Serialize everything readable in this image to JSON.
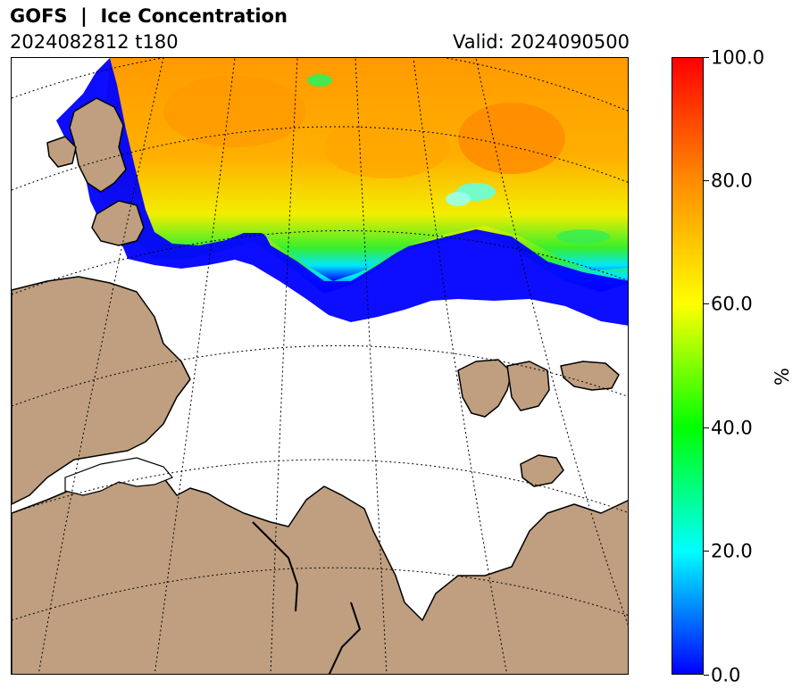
{
  "header": {
    "title": "GOFS  |  Ice Concentration",
    "run": "2024082812 t180",
    "valid": "Valid: 2024090500"
  },
  "colorbar": {
    "unit": "%",
    "min": 0,
    "max": 100,
    "ticks": [
      "0.0",
      "20.0",
      "40.0",
      "60.0",
      "80.0",
      "100.0"
    ],
    "colors": [
      "#0000ff",
      "#00ffff",
      "#00ff00",
      "#ffff00",
      "#ff8c00",
      "#ff0000"
    ]
  },
  "map": {
    "land_color": "#bf9f80",
    "ocean_color": "#ffffff",
    "graticule_style": "dotted",
    "sea_ice_color_low": "#0000ff",
    "sea_ice_color_high": "#ff9800"
  }
}
